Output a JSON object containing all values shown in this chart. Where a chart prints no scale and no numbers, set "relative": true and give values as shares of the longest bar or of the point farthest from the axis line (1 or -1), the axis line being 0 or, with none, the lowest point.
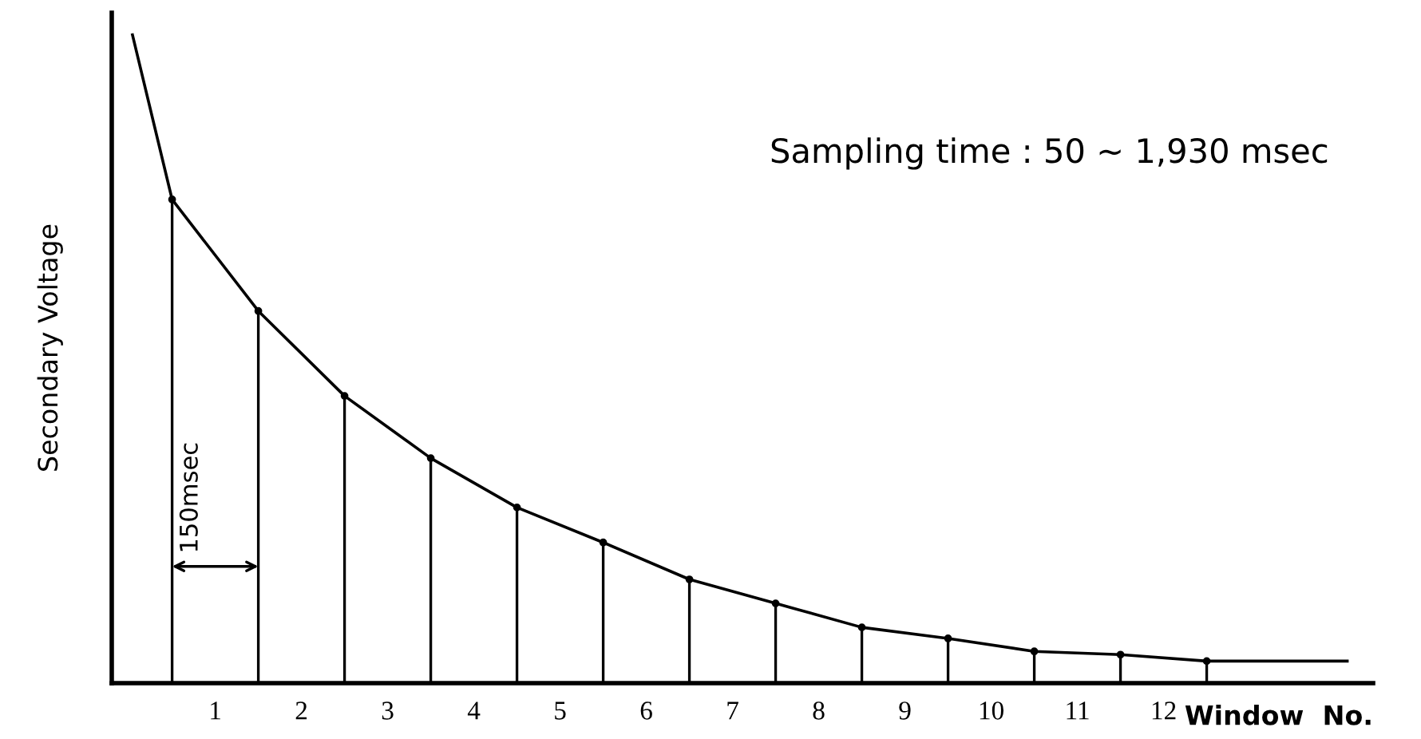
{
  "chart_data": {
    "type": "line",
    "relative": true,
    "ylabel": "Secondary Voltage",
    "xlabel": "Window  No.",
    "xlim": [
      -0.2,
      14.43
    ],
    "xticks": [
      1,
      2,
      3,
      4,
      5,
      6,
      7,
      8,
      9,
      10,
      11,
      12
    ],
    "tick_labels": "x",
    "grid": false,
    "legend": false,
    "marker": "none",
    "line_style": "solid",
    "annotations": [
      "Sampling time : 50 ∼ 1,930 msec",
      "150msec"
    ],
    "series": [
      {
        "color": "#000000",
        "x": [
          0.04,
          0.5,
          1.5,
          2.5,
          3.5,
          4.5,
          5.5,
          6.5,
          7.5,
          8.5,
          9.5,
          10.5,
          11.5,
          12.5,
          14.13
        ],
        "values": [
          1.0,
          0.746,
          0.574,
          0.443,
          0.347,
          0.271,
          0.217,
          0.16,
          0.123,
          0.086,
          0.069,
          0.049,
          0.044,
          0.034,
          0.034
        ]
      },
      {
        "type": "lollipop",
        "color": "#000000",
        "x": [
          0.5,
          1.5,
          2.5,
          3.5,
          4.5,
          5.5,
          6.5,
          7.5,
          8.5,
          9.5,
          10.5,
          11.5,
          12.5
        ],
        "values": [
          0.746,
          0.574,
          0.443,
          0.347,
          0.271,
          0.217,
          0.16,
          0.123,
          0.086,
          0.069,
          0.049,
          0.044,
          0.034
        ]
      }
    ]
  }
}
